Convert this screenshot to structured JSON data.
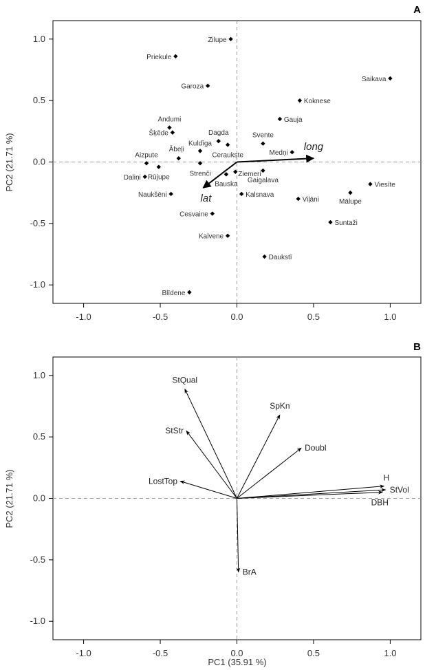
{
  "figure": {
    "xlabel": "PC1 (35.91 %)",
    "ylabel": "PC2 (21.71 %)"
  },
  "chart_data": [
    {
      "type": "scatter",
      "panel": "A",
      "ylabel": "PC2 (21.71 %)",
      "xlim": [
        -1.2,
        1.2
      ],
      "ylim": [
        -1.15,
        1.15
      ],
      "xticks": [
        -1.0,
        -0.5,
        0.0,
        0.5,
        1.0
      ],
      "yticks": [
        -1.0,
        -0.5,
        0.0,
        0.5,
        1.0
      ],
      "xtick_labels": [
        "-1.0",
        "-0.5",
        "0.0",
        "0.5",
        "1.0"
      ],
      "ytick_labels": [
        "-1.0",
        "-0.5",
        "0.0",
        "0.5",
        "1.0"
      ],
      "reference_lines": "dashed at x=0 and y=0",
      "points": [
        {
          "label": "Zilupe",
          "x": -0.04,
          "y": 1.0
        },
        {
          "label": "Priekule",
          "x": -0.4,
          "y": 0.86
        },
        {
          "label": "Saikava",
          "x": 1.0,
          "y": 0.68
        },
        {
          "label": "Garoza",
          "x": -0.19,
          "y": 0.62
        },
        {
          "label": "Koknese",
          "x": 0.41,
          "y": 0.5
        },
        {
          "label": "Gauja",
          "x": 0.28,
          "y": 0.35
        },
        {
          "label": "Andumi",
          "x": -0.44,
          "y": 0.28
        },
        {
          "label": "Šķēde",
          "x": -0.42,
          "y": 0.24
        },
        {
          "label": "Dagda",
          "x": -0.12,
          "y": 0.17
        },
        {
          "label": "Svente",
          "x": 0.17,
          "y": 0.15
        },
        {
          "label": "Ceraukste",
          "x": -0.06,
          "y": 0.14
        },
        {
          "label": "Kuldīga",
          "x": -0.24,
          "y": 0.09
        },
        {
          "label": "Medņi",
          "x": 0.36,
          "y": 0.08
        },
        {
          "label": "Ābeļi",
          "x": -0.38,
          "y": 0.03
        },
        {
          "label": "Aizpute",
          "x": -0.59,
          "y": -0.01
        },
        {
          "label": "Strenči",
          "x": -0.24,
          "y": -0.01
        },
        {
          "label": "Rūjupe",
          "x": -0.51,
          "y": -0.04
        },
        {
          "label": "Gaigalava",
          "x": 0.17,
          "y": -0.07
        },
        {
          "label": "Ziemeri",
          "x": -0.01,
          "y": -0.08
        },
        {
          "label": "Bauska",
          "x": -0.07,
          "y": -0.1
        },
        {
          "label": "Daliņi",
          "x": -0.6,
          "y": -0.12
        },
        {
          "label": "Viesīte",
          "x": 0.87,
          "y": -0.18
        },
        {
          "label": "Mālupe",
          "x": 0.74,
          "y": -0.25
        },
        {
          "label": "Kalsnava",
          "x": 0.03,
          "y": -0.26
        },
        {
          "label": "Naukšēni",
          "x": -0.43,
          "y": -0.26
        },
        {
          "label": "Viļāni",
          "x": 0.4,
          "y": -0.3
        },
        {
          "label": "Cesvaine",
          "x": -0.16,
          "y": -0.42
        },
        {
          "label": "Suntaži",
          "x": 0.61,
          "y": -0.49
        },
        {
          "label": "Kalvene",
          "x": -0.06,
          "y": -0.6
        },
        {
          "label": "Daukstī",
          "x": 0.18,
          "y": -0.77
        },
        {
          "label": "Blīdene",
          "x": -0.31,
          "y": -1.06
        }
      ],
      "vectors": [
        {
          "label": "long",
          "x": 0.5,
          "y": 0.03
        },
        {
          "label": "lat",
          "x": -0.22,
          "y": -0.21
        }
      ]
    },
    {
      "type": "scatter",
      "panel": "B",
      "ylabel": "PC2 (21.71 %)",
      "xlabel": "PC1 (35.91 %)",
      "xlim": [
        -1.2,
        1.2
      ],
      "ylim": [
        -1.15,
        1.15
      ],
      "xticks": [
        -1.0,
        -0.5,
        0.0,
        0.5,
        1.0
      ],
      "yticks": [
        -1.0,
        -0.5,
        0.0,
        0.5,
        1.0
      ],
      "xtick_labels": [
        "-1.0",
        "-0.5",
        "0.0",
        "0.5",
        "1.0"
      ],
      "ytick_labels": [
        "-1.0",
        "-0.5",
        "0.0",
        "0.5",
        "1.0"
      ],
      "reference_lines": "dashed at x=0 and y=0",
      "vectors": [
        {
          "label": "StQual",
          "x": -0.34,
          "y": 0.89
        },
        {
          "label": "SpKn",
          "x": 0.28,
          "y": 0.68
        },
        {
          "label": "StStr",
          "x": -0.33,
          "y": 0.55
        },
        {
          "label": "Doubl",
          "x": 0.42,
          "y": 0.41
        },
        {
          "label": "LostTop",
          "x": -0.37,
          "y": 0.14
        },
        {
          "label": "H",
          "x": 0.96,
          "y": 0.1
        },
        {
          "label": "StVol",
          "x": 0.97,
          "y": 0.07
        },
        {
          "label": "DBH",
          "x": 0.95,
          "y": 0.05
        },
        {
          "label": "BrA",
          "x": 0.01,
          "y": -0.6
        }
      ]
    }
  ]
}
